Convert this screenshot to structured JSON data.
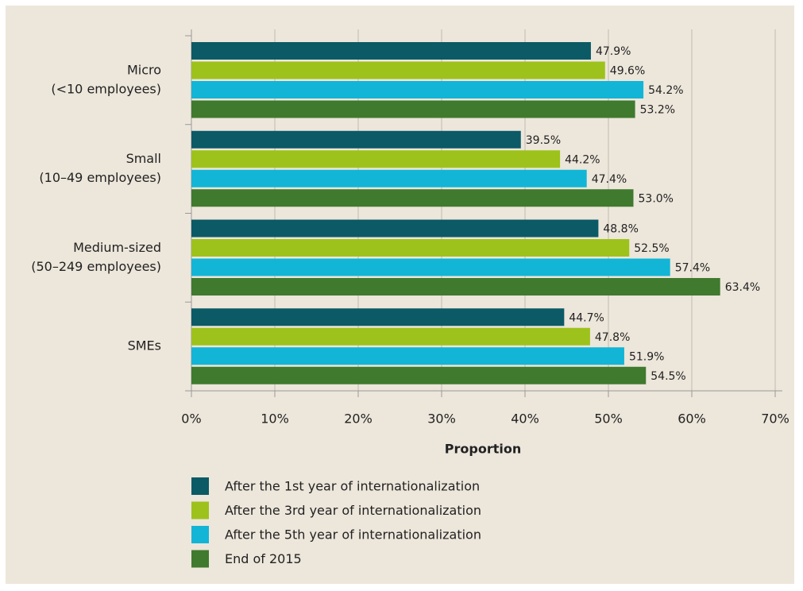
{
  "chart_data": {
    "type": "bar",
    "orientation": "horizontal",
    "categories": [
      [
        "Micro",
        "(<10 employees)"
      ],
      [
        "Small",
        "(10–49 employees)"
      ],
      [
        "Medium-sized",
        "(50–249 employees)"
      ],
      [
        "SMEs"
      ]
    ],
    "series": [
      {
        "name": "After the 1st year of internationalization",
        "color": "#0b5a66",
        "values": [
          47.9,
          39.5,
          48.8,
          44.7
        ],
        "value_labels": [
          "47.9%",
          "39.5%",
          "48.8%",
          "44.7%"
        ]
      },
      {
        "name": "After the 3rd year of internationalization",
        "color": "#9dc21b",
        "values": [
          49.6,
          44.2,
          52.5,
          47.8
        ],
        "value_labels": [
          "49.6%",
          "44.2%",
          "52.5%",
          "47.8%"
        ]
      },
      {
        "name": "After the 5th year of internationalization",
        "color": "#12b5d6",
        "values": [
          54.2,
          47.4,
          57.4,
          51.9
        ],
        "value_labels": [
          "54.2%",
          "47.4%",
          "57.4%",
          "51.9%"
        ]
      },
      {
        "name": "End of 2015",
        "color": "#3f7a2e",
        "values": [
          53.2,
          53.0,
          63.4,
          54.5
        ],
        "value_labels": [
          "53.2%",
          "53.0%",
          "63.4%",
          "54.5%"
        ]
      }
    ],
    "x_label": "Proportion",
    "xlim": [
      0,
      70
    ],
    "xticks": [
      {
        "value": 0,
        "label": "0%"
      },
      {
        "value": 10,
        "label": "10%"
      },
      {
        "value": 20,
        "label": "20%"
      },
      {
        "value": 30,
        "label": "30%"
      },
      {
        "value": 40,
        "label": "40%"
      },
      {
        "value": 50,
        "label": "50%"
      },
      {
        "value": 60,
        "label": "60%"
      },
      {
        "value": 70,
        "label": "70%"
      }
    ],
    "grid": true,
    "legend": "bottom"
  }
}
